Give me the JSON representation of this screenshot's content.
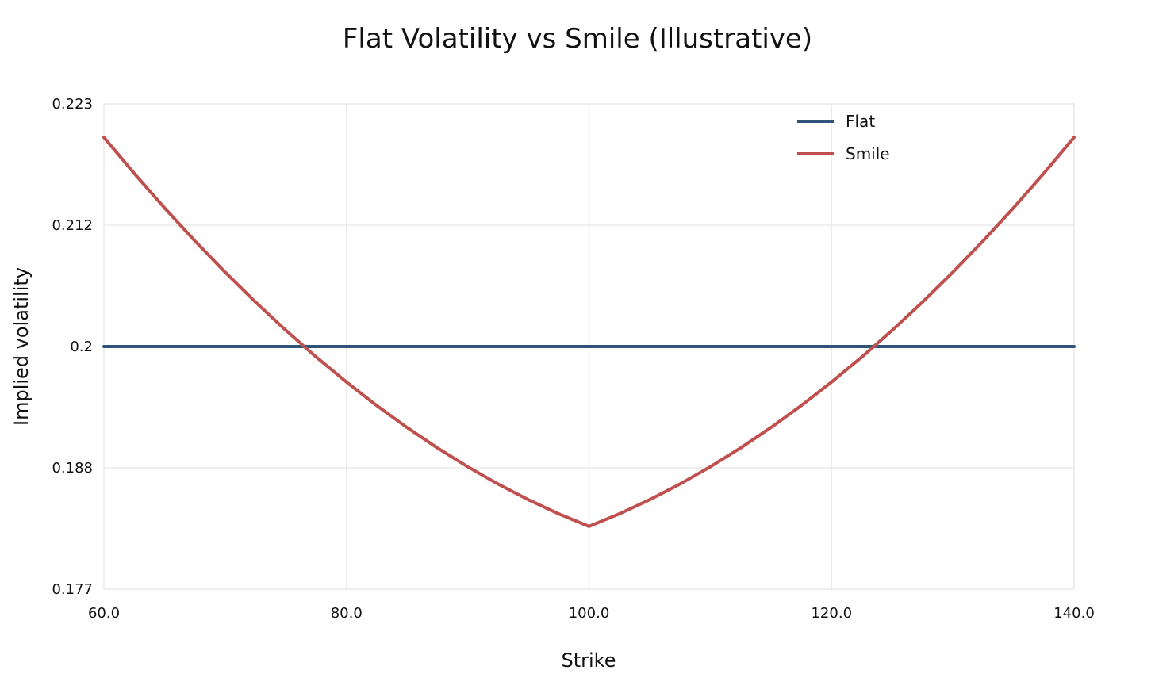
{
  "chart_data": {
    "type": "line",
    "title": "Flat Volatility vs Smile (Illustrative)",
    "xlabel": "Strike",
    "ylabel": "Implied volatility",
    "xlim": [
      60,
      140
    ],
    "ylim": [
      0.1768,
      0.2232
    ],
    "x_ticks": [
      {
        "value": 60,
        "label": "60.0"
      },
      {
        "value": 80,
        "label": "80.0"
      },
      {
        "value": 100,
        "label": "100.0"
      },
      {
        "value": 120,
        "label": "120.0"
      },
      {
        "value": 140,
        "label": "140.0"
      }
    ],
    "y_ticks": [
      {
        "value": 0.1768,
        "label": "0.177"
      },
      {
        "value": 0.1884,
        "label": "0.188"
      },
      {
        "value": 0.2,
        "label": "0.2"
      },
      {
        "value": 0.2116,
        "label": "0.212"
      },
      {
        "value": 0.2232,
        "label": "0.223"
      }
    ],
    "grid": true,
    "legend_position": "top-right",
    "series": [
      {
        "name": "Flat",
        "color": "#2e5479",
        "x": [
          60,
          140
        ],
        "y": [
          0.2,
          0.2
        ]
      },
      {
        "name": "Smile",
        "color": "#c0504d",
        "x": [
          60,
          62.5,
          65,
          67.5,
          70,
          72.5,
          75,
          77.5,
          80,
          82.5,
          85,
          87.5,
          90,
          92.5,
          95,
          97.5,
          100,
          102.5,
          105,
          107.5,
          110,
          112.5,
          115,
          117.5,
          120,
          122.5,
          125,
          127.5,
          130,
          132.5,
          135,
          137.5,
          140
        ],
        "y": [
          0.22,
          0.21655,
          0.21325,
          0.2101,
          0.2071,
          0.20425,
          0.20155,
          0.199,
          0.1966,
          0.19435,
          0.19225,
          0.1903,
          0.1885,
          0.18685,
          0.18535,
          0.184,
          0.1828,
          0.184,
          0.18535,
          0.18685,
          0.1885,
          0.1903,
          0.19225,
          0.19435,
          0.1966,
          0.199,
          0.20155,
          0.20425,
          0.2071,
          0.2101,
          0.21325,
          0.21655,
          0.22
        ]
      }
    ]
  }
}
